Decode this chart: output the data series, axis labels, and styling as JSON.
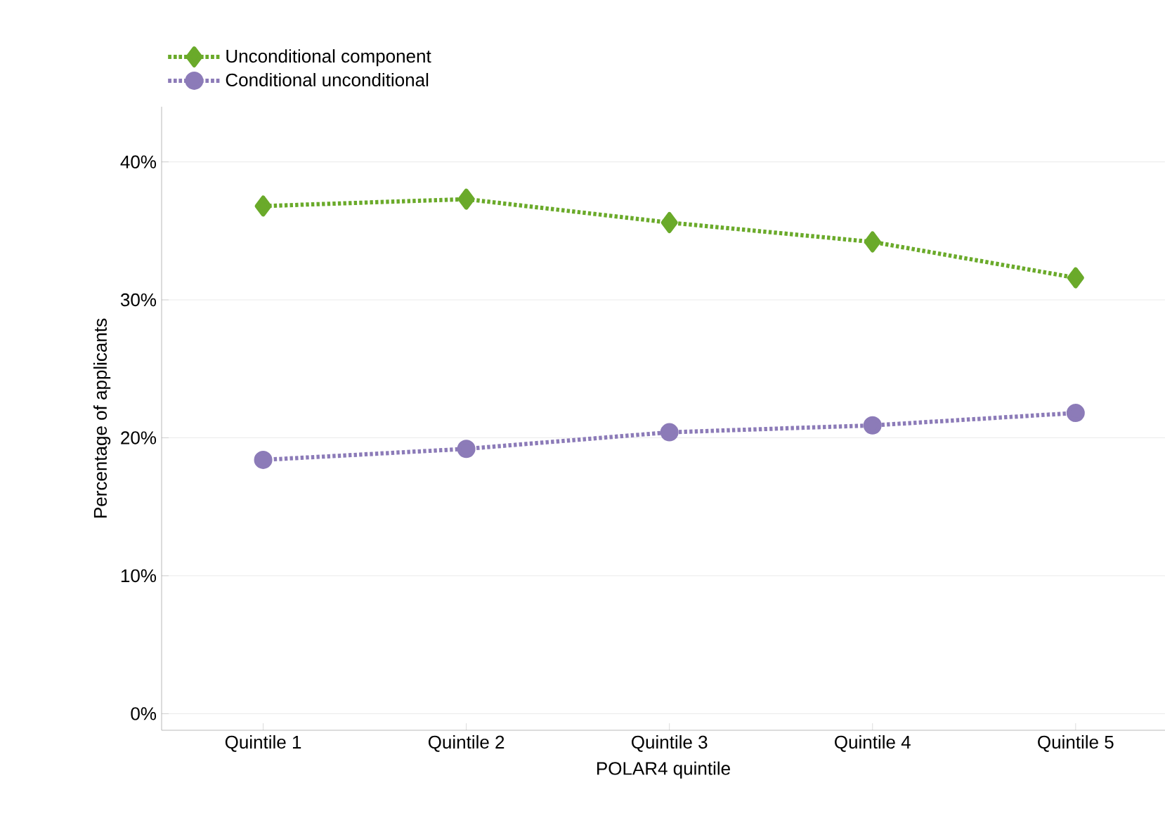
{
  "chart_data": {
    "type": "line",
    "xlabel": "POLAR4 quintile",
    "ylabel": "Percentage of applicants",
    "categories": [
      "Quintile 1",
      "Quintile 2",
      "Quintile 3",
      "Quintile 4",
      "Quintile 5"
    ],
    "series": [
      {
        "name": "Unconditional component",
        "color": "#6aaa2a",
        "marker": "diamond",
        "values": [
          36.8,
          37.3,
          35.6,
          34.2,
          31.6
        ]
      },
      {
        "name": "Conditional unconditional",
        "color": "#8c7bb8",
        "marker": "circle",
        "values": [
          18.4,
          19.2,
          20.4,
          20.9,
          21.8
        ]
      }
    ],
    "ylim": [
      -1.2,
      44
    ],
    "yticks": [
      {
        "value": 0,
        "label": "0%"
      },
      {
        "value": 10,
        "label": "10%"
      },
      {
        "value": 20,
        "label": "20%"
      },
      {
        "value": 30,
        "label": "30%"
      },
      {
        "value": 40,
        "label": "40%"
      }
    ],
    "grid": "y",
    "legend": "top left",
    "line_style": "dotted"
  }
}
